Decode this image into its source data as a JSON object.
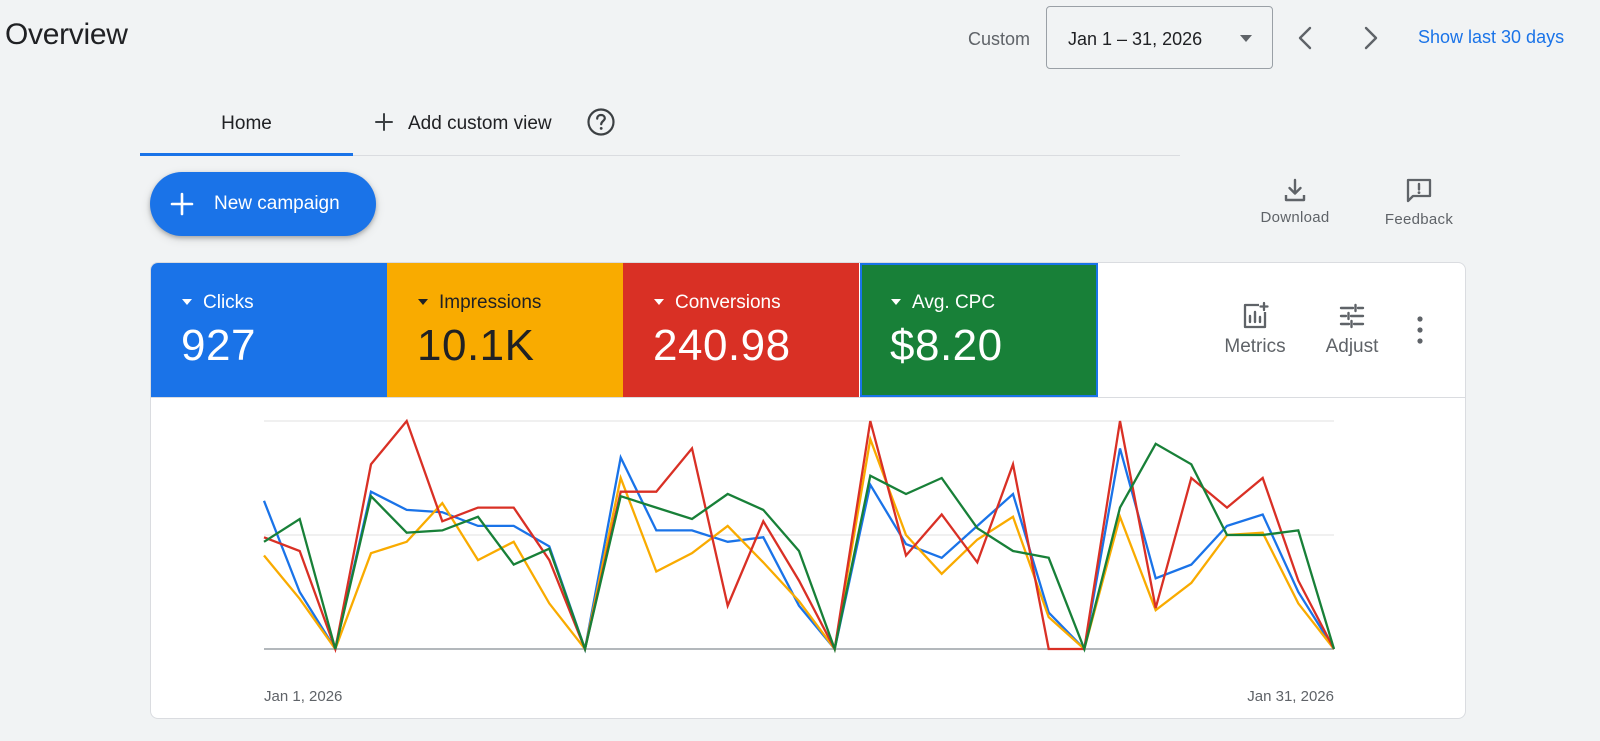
{
  "header": {
    "title": "Overview",
    "range_label": "Custom",
    "date_range": "Jan 1 – 31, 2026",
    "show_last": "Show last 30 days"
  },
  "tabs": [
    {
      "label": "Home",
      "active": true
    },
    {
      "label": "Add custom view",
      "active": false
    }
  ],
  "toolbar": {
    "new_campaign": "New campaign",
    "download": "Download",
    "feedback": "Feedback"
  },
  "metrics": [
    {
      "name": "Clicks",
      "value": "927",
      "color": "#1a73e8"
    },
    {
      "name": "Impressions",
      "value": "10.1K",
      "color": "#f9ab00"
    },
    {
      "name": "Conversions",
      "value": "240.98",
      "color": "#d93025"
    },
    {
      "name": "Avg. CPC",
      "value": "$8.20",
      "color": "#188038"
    }
  ],
  "card_actions": {
    "metrics": "Metrics",
    "adjust": "Adjust"
  },
  "icons": [
    "plus-icon",
    "help-icon",
    "download-icon",
    "feedback-icon",
    "metrics-icon",
    "adjust-icon",
    "more-vert-icon",
    "chevron-left-icon",
    "chevron-right-icon",
    "dropdown-caret-icon"
  ],
  "chart_data": {
    "type": "line",
    "x_start_label": "Jan 1, 2026",
    "x_end_label": "Jan 31, 2026",
    "x": [
      "Jan 1",
      "Jan 2",
      "Jan 3",
      "Jan 4",
      "Jan 5",
      "Jan 6",
      "Jan 7",
      "Jan 8",
      "Jan 9",
      "Jan 10",
      "Jan 11",
      "Jan 12",
      "Jan 13",
      "Jan 14",
      "Jan 15",
      "Jan 16",
      "Jan 17",
      "Jan 18",
      "Jan 19",
      "Jan 20",
      "Jan 21",
      "Jan 22",
      "Jan 23",
      "Jan 24",
      "Jan 25",
      "Jan 26",
      "Jan 27",
      "Jan 28",
      "Jan 29",
      "Jan 30",
      "Jan 31"
    ],
    "ylim": [
      0,
      1
    ],
    "grid": true,
    "series": [
      {
        "color": "#1a73e8",
        "values": [
          0.65,
          0.25,
          0.0,
          0.69,
          0.61,
          0.6,
          0.54,
          0.54,
          0.45,
          0.0,
          0.84,
          0.52,
          0.52,
          0.47,
          0.49,
          0.19,
          0.0,
          0.72,
          0.46,
          0.4,
          0.54,
          0.68,
          0.16,
          0.0,
          0.88,
          0.31,
          0.37,
          0.54,
          0.59,
          0.25,
          0.0
        ]
      },
      {
        "color": "#f9ab00",
        "values": [
          0.41,
          0.22,
          0.0,
          0.42,
          0.47,
          0.64,
          0.39,
          0.47,
          0.2,
          0.0,
          0.75,
          0.34,
          0.42,
          0.54,
          0.38,
          0.21,
          0.0,
          0.92,
          0.5,
          0.33,
          0.48,
          0.58,
          0.14,
          0.0,
          0.58,
          0.17,
          0.29,
          0.5,
          0.51,
          0.2,
          0.0
        ]
      },
      {
        "color": "#d93025",
        "values": [
          0.49,
          0.43,
          0.0,
          0.81,
          1.0,
          0.56,
          0.62,
          0.62,
          0.39,
          0.0,
          0.69,
          0.69,
          0.88,
          0.19,
          0.56,
          0.3,
          0.0,
          1.0,
          0.41,
          0.59,
          0.38,
          0.81,
          0.0,
          0.0,
          1.0,
          0.18,
          0.75,
          0.62,
          0.75,
          0.3,
          0.0
        ]
      },
      {
        "color": "#188038",
        "values": [
          0.47,
          0.57,
          0.0,
          0.67,
          0.51,
          0.52,
          0.58,
          0.37,
          0.44,
          0.0,
          0.67,
          0.62,
          0.57,
          0.68,
          0.61,
          0.43,
          0.0,
          0.76,
          0.68,
          0.75,
          0.53,
          0.43,
          0.4,
          0.0,
          0.62,
          0.9,
          0.81,
          0.5,
          0.5,
          0.52,
          0.0
        ]
      }
    ]
  }
}
